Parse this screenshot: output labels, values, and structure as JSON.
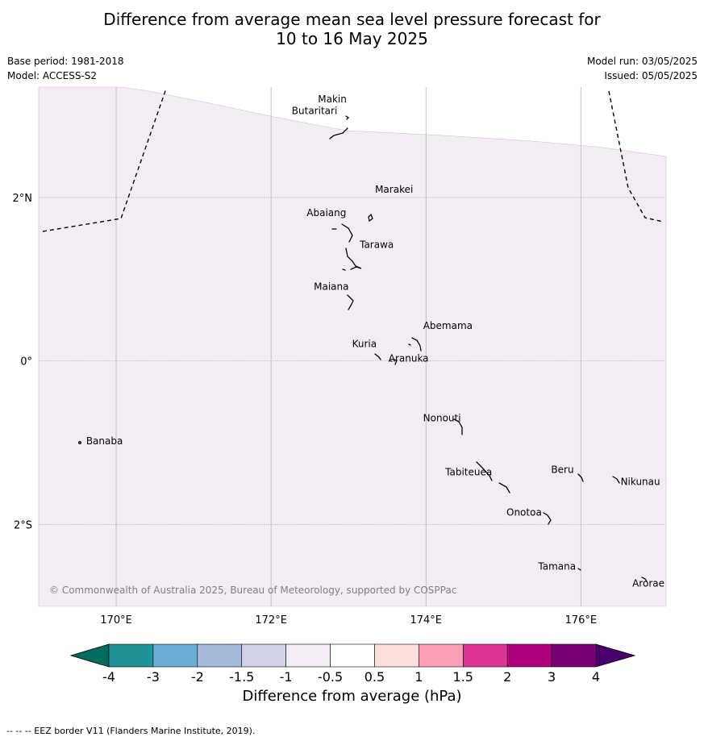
{
  "title": {
    "line1": "Difference from average mean sea level pressure forecast for",
    "line2": "10 to 16 May 2025"
  },
  "meta": {
    "base_period": "Base period: 1981-2018",
    "model": "Model: ACCESS-S2",
    "model_run": "Model run: 03/05/2025",
    "issued": "Issued: 05/05/2025"
  },
  "map": {
    "lon_range": [
      169,
      177.1
    ],
    "lat_range": [
      -3.0,
      3.35
    ],
    "shaded_class": "-1 to -0.5",
    "shade_color": "#f4ecf5",
    "lon_ticks": [
      {
        "value": 170,
        "label": "170°E"
      },
      {
        "value": 172,
        "label": "172°E"
      },
      {
        "value": 174,
        "label": "174°E"
      },
      {
        "value": 176,
        "label": "176°E"
      }
    ],
    "lat_ticks": [
      {
        "value": 2,
        "label": "2°N"
      },
      {
        "value": 0,
        "label": "0°"
      },
      {
        "value": -2,
        "label": "2°S"
      }
    ],
    "islands": [
      {
        "name": "Makin",
        "lon": 172.99,
        "lat": 3.18
      },
      {
        "name": "Butaritari",
        "lon": 172.85,
        "lat": 3.06
      },
      {
        "name": "Marakei",
        "lon": 173.28,
        "lat": 2.0
      },
      {
        "name": "Abaiang",
        "lon": 172.98,
        "lat": 1.83
      },
      {
        "name": "Tarawa",
        "lon": 173.02,
        "lat": 1.42
      },
      {
        "name": "Maiana",
        "lon": 173.02,
        "lat": 0.93
      },
      {
        "name": "Abemama",
        "lon": 173.88,
        "lat": 0.42
      },
      {
        "name": "Kuria",
        "lon": 173.4,
        "lat": 0.24
      },
      {
        "name": "Aranuka",
        "lon": 173.62,
        "lat": 0.17
      },
      {
        "name": "Nonouti",
        "lon": 174.4,
        "lat": -0.66
      },
      {
        "name": "Banaba",
        "lon": 169.55,
        "lat": -0.88
      },
      {
        "name": "Tabiteuea",
        "lon": 174.78,
        "lat": -1.33
      },
      {
        "name": "Beru",
        "lon": 175.98,
        "lat": -1.33
      },
      {
        "name": "Nikunau",
        "lon": 176.45,
        "lat": -1.36
      },
      {
        "name": "Onotoa",
        "lon": 175.58,
        "lat": -1.82
      },
      {
        "name": "Tamana",
        "lon": 175.98,
        "lat": -2.5
      },
      {
        "name": "Arorae",
        "lon": 176.82,
        "lat": -2.65
      }
    ],
    "copyright": "© Commonwealth of Australia 2025, Bureau of Meteorology, supported by COSPPac"
  },
  "colorbar": {
    "bins": [
      {
        "from": -4,
        "to": -3,
        "color": "#1f9398"
      },
      {
        "from": -3,
        "to": -2,
        "color": "#6aadd5"
      },
      {
        "from": -2,
        "to": -1.5,
        "color": "#a6bbdb"
      },
      {
        "from": -1.5,
        "to": -1,
        "color": "#d0d1e6"
      },
      {
        "from": -1,
        "to": -0.5,
        "color": "#f4ecf5"
      },
      {
        "from": -0.5,
        "to": 0.5,
        "color": "#ffffff"
      },
      {
        "from": 0.5,
        "to": 1,
        "color": "#fde0dd"
      },
      {
        "from": 1,
        "to": 1.5,
        "color": "#fa9fb5"
      },
      {
        "from": 1.5,
        "to": 2,
        "color": "#dd3497"
      },
      {
        "from": 2,
        "to": 3,
        "color": "#ae017e"
      },
      {
        "from": 3,
        "to": 4,
        "color": "#7a0177"
      }
    ],
    "low_extend_color": "#006b5f",
    "high_extend_color": "#49006a",
    "tick_labels": [
      "-4",
      "-3",
      "-2",
      "-1.5",
      "-1",
      "-0.5",
      "0.5",
      "1",
      "1.5",
      "2",
      "3",
      "4"
    ],
    "label": "Difference from average (hPa)"
  },
  "footer": "--  --  -- EEZ border V11 (Flanders Marine Institute, 2019)."
}
